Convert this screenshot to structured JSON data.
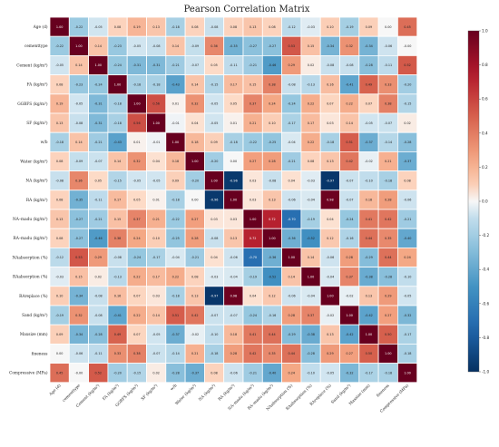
{
  "chart_data": {
    "type": "heatmap",
    "title": "Pearson Correlation Matrix",
    "variables": [
      "Age (d)",
      "cementtype",
      "Cement (kg/m³)",
      "FA (kg/m³)",
      "GGBFS (kg/m³)",
      "SF (kg/m³)",
      "w/b",
      "Water (kg/m³)",
      "NA (kg/m³)",
      "RA (kg/m³)",
      "NA–madu (kg/m³)",
      "RA–madu (kg/m³)",
      "NAabsorption (%)",
      "RAabsorption (%)",
      "RAreplace (%)",
      "Sand (kg/m³)",
      "Maxsize (mm)",
      "fineness",
      "Compressive (MPa)"
    ],
    "matrix": [
      [
        1.0,
        -0.22,
        -0.05,
        0.08,
        0.19,
        0.13,
        -0.18,
        0.08,
        -0.08,
        0.08,
        0.13,
        0.08,
        -0.12,
        -0.03,
        0.1,
        -0.19,
        0.09,
        0.0,
        0.45
      ],
      [
        -0.22,
        1.0,
        0.14,
        -0.23,
        -0.05,
        -0.08,
        0.14,
        -0.09,
        0.36,
        -0.35,
        -0.27,
        -0.27,
        0.53,
        0.15,
        -0.34,
        0.32,
        -0.34,
        -0.06,
        -0.0
      ],
      [
        -0.05,
        0.14,
        1.0,
        -0.24,
        -0.31,
        -0.31,
        -0.21,
        -0.07,
        0.05,
        -0.11,
        -0.21,
        -0.46,
        0.29,
        0.02,
        -0.08,
        -0.08,
        -0.28,
        -0.11,
        0.52
      ],
      [
        0.08,
        -0.23,
        -0.24,
        1.0,
        -0.18,
        -0.18,
        -0.43,
        0.14,
        -0.15,
        0.17,
        0.15,
        0.38,
        -0.08,
        -0.13,
        0.16,
        -0.41,
        0.49,
        0.33,
        -0.2
      ],
      [
        0.19,
        -0.05,
        -0.31,
        -0.18,
        1.0,
        0.56,
        0.01,
        0.32,
        -0.05,
        0.05,
        0.37,
        0.24,
        -0.24,
        0.22,
        0.07,
        0.22,
        0.07,
        0.38,
        -0.15
      ],
      [
        0.13,
        -0.08,
        -0.31,
        -0.18,
        0.56,
        1.0,
        -0.01,
        0.04,
        -0.05,
        0.01,
        0.21,
        0.1,
        -0.17,
        0.17,
        0.03,
        0.14,
        -0.05,
        -0.07,
        0.02
      ],
      [
        -0.18,
        0.14,
        -0.21,
        -0.43,
        0.01,
        -0.01,
        1.0,
        0.18,
        0.09,
        -0.18,
        -0.22,
        -0.25,
        -0.04,
        0.22,
        -0.18,
        0.51,
        -0.37,
        -0.14,
        -0.28
      ],
      [
        0.08,
        -0.09,
        -0.07,
        0.14,
        0.32,
        0.04,
        0.18,
        1.0,
        -0.2,
        0.0,
        0.27,
        0.28,
        -0.21,
        0.08,
        0.13,
        0.42,
        -0.02,
        0.21,
        -0.37
      ],
      [
        -0.08,
        0.36,
        0.05,
        -0.15,
        -0.05,
        -0.05,
        0.09,
        -0.2,
        1.0,
        -0.96,
        0.03,
        -0.08,
        0.04,
        -0.03,
        -0.97,
        -0.07,
        -0.1,
        -0.18,
        0.08
      ],
      [
        0.08,
        -0.35,
        -0.11,
        0.17,
        0.05,
        0.01,
        -0.18,
        0.0,
        -0.96,
        1.0,
        0.03,
        0.13,
        -0.06,
        -0.04,
        0.98,
        -0.07,
        0.18,
        0.28,
        -0.06
      ],
      [
        0.13,
        -0.27,
        -0.21,
        0.15,
        0.37,
        0.21,
        -0.22,
        0.27,
        0.03,
        0.03,
        1.0,
        0.72,
        -0.7,
        -0.19,
        0.04,
        -0.24,
        0.41,
        0.42,
        -0.21
      ],
      [
        0.08,
        -0.27,
        -0.46,
        0.38,
        0.24,
        0.1,
        -0.25,
        0.28,
        -0.08,
        0.13,
        0.72,
        1.0,
        -0.36,
        -0.52,
        0.12,
        -0.16,
        0.44,
        0.35,
        -0.4
      ],
      [
        -0.12,
        0.53,
        0.29,
        -0.08,
        -0.24,
        -0.17,
        -0.04,
        -0.21,
        0.04,
        -0.06,
        -0.7,
        -0.36,
        1.0,
        0.14,
        -0.06,
        0.28,
        -0.29,
        0.44,
        0.24
      ],
      [
        -0.03,
        0.15,
        0.02,
        -0.13,
        0.22,
        0.17,
        0.22,
        0.08,
        -0.03,
        -0.04,
        -0.19,
        -0.52,
        0.14,
        1.0,
        -0.04,
        0.37,
        -0.38,
        -0.28,
        -0.1
      ],
      [
        0.1,
        -0.34,
        -0.08,
        0.16,
        0.07,
        0.03,
        -0.18,
        0.13,
        -0.97,
        0.98,
        0.04,
        0.12,
        -0.06,
        -0.04,
        1.0,
        -0.02,
        0.13,
        0.29,
        -0.05
      ],
      [
        -0.19,
        0.32,
        -0.08,
        -0.41,
        0.22,
        0.14,
        0.51,
        0.42,
        -0.07,
        -0.07,
        -0.24,
        -0.16,
        0.28,
        0.37,
        -0.02,
        1.0,
        -0.42,
        0.27,
        -0.32
      ],
      [
        0.09,
        -0.34,
        -0.28,
        0.49,
        0.07,
        -0.05,
        -0.37,
        -0.02,
        -0.1,
        0.18,
        0.41,
        0.44,
        -0.29,
        -0.38,
        0.13,
        -0.42,
        1.0,
        0.5,
        -0.17
      ],
      [
        0.0,
        -0.06,
        -0.11,
        0.33,
        0.38,
        -0.07,
        -0.14,
        0.21,
        -0.18,
        0.28,
        0.42,
        0.35,
        0.44,
        -0.28,
        0.29,
        0.27,
        0.5,
        1.0,
        -0.18
      ],
      [
        0.45,
        -0.0,
        0.52,
        -0.2,
        -0.15,
        0.02,
        -0.28,
        -0.37,
        0.08,
        -0.06,
        -0.21,
        -0.4,
        0.24,
        -0.1,
        -0.05,
        -0.32,
        -0.17,
        -0.18,
        1.0
      ]
    ],
    "value_range": [
      -1.0,
      1.0
    ],
    "colorbar_ticks": [
      1.0,
      0.8,
      0.6,
      0.4,
      0.2,
      0.0,
      -0.2,
      -0.4,
      -0.6,
      -0.8,
      -1.0
    ],
    "colormap": "RdBu_r",
    "colors": {
      "high": "#67001f",
      "mid": "#f7f7f7",
      "low": "#053061"
    },
    "legend_position": "right",
    "annotations": "two-decimal values in each cell"
  }
}
